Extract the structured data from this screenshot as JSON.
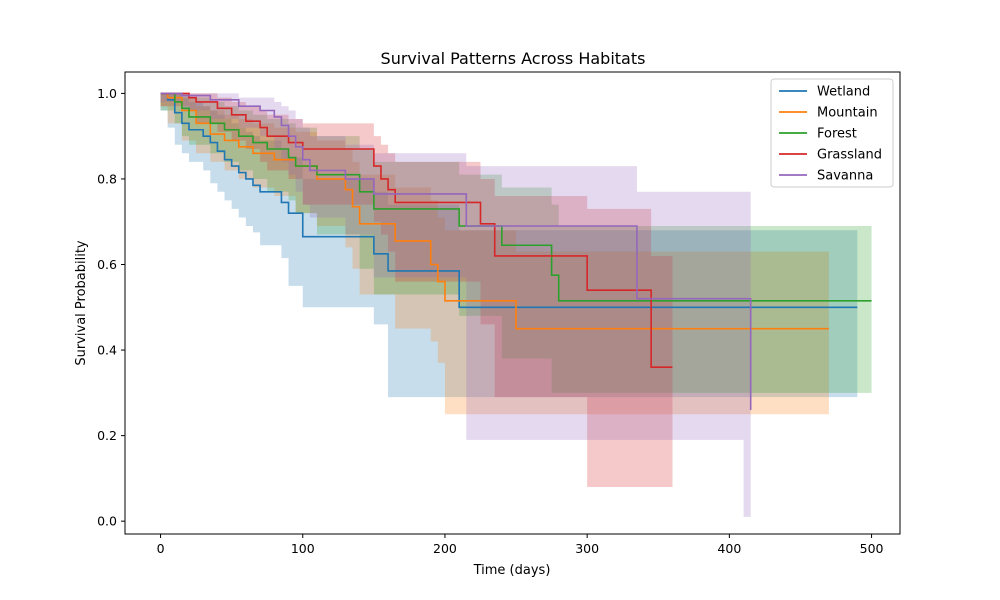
{
  "chart_data": {
    "type": "line",
    "subtype": "kaplan-meier-step",
    "title": "Survival Patterns Across Habitats",
    "xlabel": "Time (days)",
    "ylabel": "Survival Probability",
    "xlim": [
      -25,
      520
    ],
    "ylim": [
      -0.03,
      1.05
    ],
    "xticks": [
      0,
      100,
      200,
      300,
      400,
      500
    ],
    "yticks": [
      0.0,
      0.2,
      0.4,
      0.6,
      0.8,
      1.0
    ],
    "xtick_labels": [
      "0",
      "100",
      "200",
      "300",
      "400",
      "500"
    ],
    "ytick_labels": [
      "0.0",
      "0.2",
      "0.4",
      "0.6",
      "0.8",
      "1.0"
    ],
    "grid": false,
    "legend_position": "top-right",
    "series": [
      {
        "name": "Wetland",
        "color": "#1f77b4",
        "steps": [
          [
            0,
            1.0
          ],
          [
            5,
            0.985
          ],
          [
            10,
            0.955
          ],
          [
            15,
            0.93
          ],
          [
            20,
            0.915
          ],
          [
            30,
            0.9
          ],
          [
            35,
            0.885
          ],
          [
            40,
            0.865
          ],
          [
            45,
            0.845
          ],
          [
            50,
            0.83
          ],
          [
            55,
            0.815
          ],
          [
            60,
            0.8
          ],
          [
            65,
            0.785
          ],
          [
            70,
            0.77
          ],
          [
            85,
            0.745
          ],
          [
            90,
            0.72
          ],
          [
            100,
            0.665
          ],
          [
            150,
            0.625
          ],
          [
            160,
            0.585
          ],
          [
            210,
            0.5
          ],
          [
            490,
            0.5
          ]
        ],
        "ci_lower": [
          [
            0,
            1.0
          ],
          [
            5,
            0.96
          ],
          [
            10,
            0.92
          ],
          [
            15,
            0.88
          ],
          [
            20,
            0.86
          ],
          [
            30,
            0.84
          ],
          [
            35,
            0.82
          ],
          [
            40,
            0.79
          ],
          [
            45,
            0.77
          ],
          [
            50,
            0.75
          ],
          [
            55,
            0.73
          ],
          [
            60,
            0.71
          ],
          [
            65,
            0.69
          ],
          [
            70,
            0.675
          ],
          [
            85,
            0.645
          ],
          [
            90,
            0.615
          ],
          [
            100,
            0.55
          ],
          [
            150,
            0.5
          ],
          [
            160,
            0.46
          ],
          [
            210,
            0.29
          ],
          [
            490,
            0.29
          ]
        ],
        "ci_upper": [
          [
            0,
            1.0
          ],
          [
            5,
            1.0
          ],
          [
            10,
            1.0
          ],
          [
            15,
            0.99
          ],
          [
            20,
            0.98
          ],
          [
            30,
            0.97
          ],
          [
            35,
            0.96
          ],
          [
            40,
            0.95
          ],
          [
            45,
            0.94
          ],
          [
            50,
            0.93
          ],
          [
            55,
            0.92
          ],
          [
            60,
            0.91
          ],
          [
            65,
            0.9
          ],
          [
            70,
            0.89
          ],
          [
            85,
            0.87
          ],
          [
            90,
            0.85
          ],
          [
            100,
            0.8
          ],
          [
            150,
            0.77
          ],
          [
            160,
            0.74
          ],
          [
            210,
            0.68
          ],
          [
            490,
            0.68
          ]
        ]
      },
      {
        "name": "Mountain",
        "color": "#ff7f0e",
        "steps": [
          [
            0,
            1.0
          ],
          [
            5,
            0.99
          ],
          [
            15,
            0.96
          ],
          [
            25,
            0.93
          ],
          [
            35,
            0.905
          ],
          [
            45,
            0.89
          ],
          [
            55,
            0.875
          ],
          [
            65,
            0.86
          ],
          [
            80,
            0.845
          ],
          [
            95,
            0.83
          ],
          [
            110,
            0.8
          ],
          [
            130,
            0.775
          ],
          [
            135,
            0.735
          ],
          [
            140,
            0.695
          ],
          [
            165,
            0.655
          ],
          [
            190,
            0.6
          ],
          [
            195,
            0.56
          ],
          [
            200,
            0.515
          ],
          [
            250,
            0.45
          ],
          [
            470,
            0.45
          ]
        ],
        "ci_lower": [
          [
            0,
            1.0
          ],
          [
            5,
            0.97
          ],
          [
            15,
            0.93
          ],
          [
            25,
            0.89
          ],
          [
            35,
            0.86
          ],
          [
            45,
            0.84
          ],
          [
            55,
            0.82
          ],
          [
            65,
            0.8
          ],
          [
            80,
            0.78
          ],
          [
            95,
            0.76
          ],
          [
            110,
            0.72
          ],
          [
            130,
            0.69
          ],
          [
            135,
            0.64
          ],
          [
            140,
            0.59
          ],
          [
            165,
            0.53
          ],
          [
            190,
            0.45
          ],
          [
            195,
            0.42
          ],
          [
            200,
            0.37
          ],
          [
            250,
            0.25
          ],
          [
            470,
            0.25
          ]
        ],
        "ci_upper": [
          [
            0,
            1.0
          ],
          [
            5,
            1.0
          ],
          [
            15,
            0.99
          ],
          [
            25,
            0.97
          ],
          [
            35,
            0.96
          ],
          [
            45,
            0.95
          ],
          [
            55,
            0.94
          ],
          [
            65,
            0.93
          ],
          [
            80,
            0.92
          ],
          [
            95,
            0.91
          ],
          [
            110,
            0.89
          ],
          [
            130,
            0.87
          ],
          [
            135,
            0.84
          ],
          [
            140,
            0.81
          ],
          [
            165,
            0.78
          ],
          [
            190,
            0.75
          ],
          [
            195,
            0.71
          ],
          [
            200,
            0.68
          ],
          [
            250,
            0.63
          ],
          [
            470,
            0.63
          ]
        ]
      },
      {
        "name": "Forest",
        "color": "#2ca02c",
        "steps": [
          [
            0,
            1.0
          ],
          [
            10,
            0.98
          ],
          [
            15,
            0.965
          ],
          [
            20,
            0.945
          ],
          [
            35,
            0.93
          ],
          [
            45,
            0.915
          ],
          [
            55,
            0.9
          ],
          [
            65,
            0.885
          ],
          [
            75,
            0.87
          ],
          [
            90,
            0.85
          ],
          [
            95,
            0.83
          ],
          [
            110,
            0.81
          ],
          [
            140,
            0.77
          ],
          [
            150,
            0.73
          ],
          [
            210,
            0.69
          ],
          [
            240,
            0.645
          ],
          [
            275,
            0.575
          ],
          [
            280,
            0.515
          ],
          [
            500,
            0.515
          ]
        ],
        "ci_lower": [
          [
            0,
            1.0
          ],
          [
            10,
            0.96
          ],
          [
            15,
            0.93
          ],
          [
            20,
            0.9
          ],
          [
            35,
            0.88
          ],
          [
            45,
            0.86
          ],
          [
            55,
            0.84
          ],
          [
            65,
            0.82
          ],
          [
            75,
            0.8
          ],
          [
            90,
            0.77
          ],
          [
            95,
            0.75
          ],
          [
            110,
            0.72
          ],
          [
            140,
            0.67
          ],
          [
            150,
            0.59
          ],
          [
            210,
            0.53
          ],
          [
            240,
            0.48
          ],
          [
            275,
            0.38
          ],
          [
            280,
            0.3
          ],
          [
            500,
            0.3
          ]
        ],
        "ci_upper": [
          [
            0,
            1.0
          ],
          [
            10,
            1.0
          ],
          [
            15,
            1.0
          ],
          [
            20,
            0.99
          ],
          [
            35,
            0.98
          ],
          [
            45,
            0.97
          ],
          [
            55,
            0.96
          ],
          [
            65,
            0.95
          ],
          [
            75,
            0.94
          ],
          [
            90,
            0.93
          ],
          [
            95,
            0.92
          ],
          [
            110,
            0.9
          ],
          [
            140,
            0.87
          ],
          [
            150,
            0.84
          ],
          [
            210,
            0.81
          ],
          [
            240,
            0.78
          ],
          [
            275,
            0.74
          ],
          [
            280,
            0.69
          ],
          [
            500,
            0.69
          ]
        ]
      },
      {
        "name": "Grassland",
        "color": "#d62728",
        "steps": [
          [
            0,
            1.0
          ],
          [
            20,
            0.99
          ],
          [
            25,
            0.98
          ],
          [
            40,
            0.965
          ],
          [
            50,
            0.95
          ],
          [
            60,
            0.935
          ],
          [
            70,
            0.92
          ],
          [
            75,
            0.9
          ],
          [
            90,
            0.885
          ],
          [
            100,
            0.87
          ],
          [
            150,
            0.83
          ],
          [
            155,
            0.8
          ],
          [
            160,
            0.775
          ],
          [
            165,
            0.745
          ],
          [
            225,
            0.695
          ],
          [
            235,
            0.62
          ],
          [
            300,
            0.54
          ],
          [
            345,
            0.36
          ],
          [
            360,
            0.36
          ]
        ],
        "ci_lower": [
          [
            0,
            1.0
          ],
          [
            20,
            0.97
          ],
          [
            25,
            0.96
          ],
          [
            40,
            0.93
          ],
          [
            50,
            0.91
          ],
          [
            60,
            0.89
          ],
          [
            70,
            0.87
          ],
          [
            75,
            0.84
          ],
          [
            90,
            0.82
          ],
          [
            100,
            0.8
          ],
          [
            150,
            0.74
          ],
          [
            155,
            0.7
          ],
          [
            160,
            0.67
          ],
          [
            165,
            0.63
          ],
          [
            225,
            0.56
          ],
          [
            235,
            0.46
          ],
          [
            300,
            0.29
          ],
          [
            345,
            0.08
          ],
          [
            360,
            0.08
          ]
        ],
        "ci_upper": [
          [
            0,
            1.0
          ],
          [
            20,
            1.0
          ],
          [
            25,
            1.0
          ],
          [
            40,
            0.99
          ],
          [
            50,
            0.98
          ],
          [
            60,
            0.97
          ],
          [
            70,
            0.96
          ],
          [
            75,
            0.95
          ],
          [
            90,
            0.94
          ],
          [
            100,
            0.93
          ],
          [
            150,
            0.9
          ],
          [
            155,
            0.88
          ],
          [
            160,
            0.86
          ],
          [
            165,
            0.84
          ],
          [
            225,
            0.8
          ],
          [
            235,
            0.76
          ],
          [
            300,
            0.73
          ],
          [
            345,
            0.62
          ],
          [
            360,
            0.62
          ]
        ]
      },
      {
        "name": "Savanna",
        "color": "#9467bd",
        "steps": [
          [
            0,
            1.0
          ],
          [
            15,
            0.995
          ],
          [
            35,
            0.985
          ],
          [
            55,
            0.97
          ],
          [
            70,
            0.96
          ],
          [
            80,
            0.945
          ],
          [
            85,
            0.925
          ],
          [
            90,
            0.9
          ],
          [
            95,
            0.875
          ],
          [
            100,
            0.845
          ],
          [
            105,
            0.82
          ],
          [
            130,
            0.8
          ],
          [
            150,
            0.765
          ],
          [
            215,
            0.69
          ],
          [
            335,
            0.52
          ],
          [
            410,
            0.52
          ],
          [
            415,
            0.26
          ],
          [
            415,
            0.26
          ]
        ],
        "ci_lower": [
          [
            0,
            1.0
          ],
          [
            15,
            0.98
          ],
          [
            35,
            0.96
          ],
          [
            55,
            0.94
          ],
          [
            70,
            0.92
          ],
          [
            80,
            0.9
          ],
          [
            85,
            0.87
          ],
          [
            90,
            0.84
          ],
          [
            95,
            0.81
          ],
          [
            100,
            0.77
          ],
          [
            105,
            0.74
          ],
          [
            130,
            0.71
          ],
          [
            150,
            0.67
          ],
          [
            215,
            0.57
          ],
          [
            335,
            0.19
          ],
          [
            410,
            0.19
          ],
          [
            415,
            0.01
          ],
          [
            415,
            0.01
          ]
        ],
        "ci_upper": [
          [
            0,
            1.0
          ],
          [
            15,
            1.0
          ],
          [
            35,
            1.0
          ],
          [
            55,
            0.99
          ],
          [
            70,
            0.99
          ],
          [
            80,
            0.98
          ],
          [
            85,
            0.97
          ],
          [
            90,
            0.96
          ],
          [
            95,
            0.94
          ],
          [
            100,
            0.92
          ],
          [
            105,
            0.9
          ],
          [
            130,
            0.88
          ],
          [
            150,
            0.86
          ],
          [
            215,
            0.83
          ],
          [
            335,
            0.77
          ],
          [
            410,
            0.77
          ],
          [
            415,
            0.77
          ],
          [
            415,
            0.77
          ]
        ]
      }
    ]
  }
}
